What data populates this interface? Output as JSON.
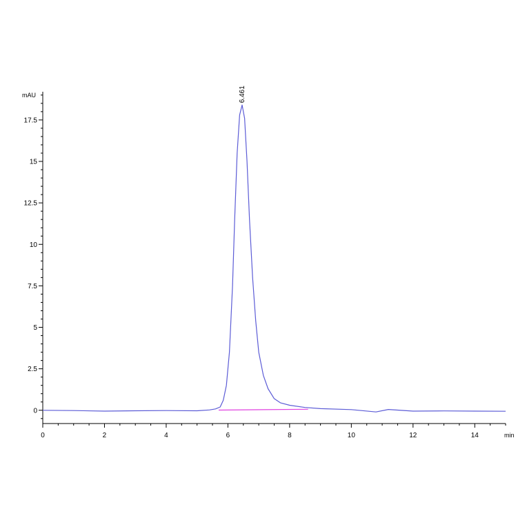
{
  "chart_data": {
    "type": "line",
    "ylabel": "mAU",
    "xlabel": "min",
    "xlim": [
      0,
      15
    ],
    "ylim": [
      -0.8,
      19.2
    ],
    "x_ticks": [
      0,
      2,
      4,
      6,
      8,
      10,
      12,
      14
    ],
    "x_tick_labels": [
      "0",
      "2",
      "4",
      "6",
      "8",
      "10",
      "12",
      "14"
    ],
    "y_ticks": [
      0,
      2.5,
      5,
      7.5,
      10,
      12.5,
      15,
      17.5
    ],
    "y_tick_labels": [
      "0",
      "2.5",
      "5",
      "7.5",
      "10",
      "12.5",
      "15",
      "17.5"
    ],
    "grid": false,
    "colors": {
      "signal": "#5b5bd6",
      "baseline": "#e040e0",
      "axis": "#000000"
    },
    "series": [
      {
        "values": [
          [
            0,
            0
          ],
          [
            1,
            -0.02
          ],
          [
            2,
            -0.05
          ],
          [
            3,
            -0.03
          ],
          [
            4,
            -0.02
          ],
          [
            5,
            -0.03
          ],
          [
            5.4,
            0.02
          ],
          [
            5.6,
            0.08
          ],
          [
            5.75,
            0.2
          ],
          [
            5.85,
            0.6
          ],
          [
            5.95,
            1.5
          ],
          [
            6.05,
            3.5
          ],
          [
            6.15,
            7.5
          ],
          [
            6.22,
            11.5
          ],
          [
            6.3,
            15.5
          ],
          [
            6.38,
            17.8
          ],
          [
            6.46,
            18.4
          ],
          [
            6.54,
            17.6
          ],
          [
            6.62,
            15.0
          ],
          [
            6.7,
            11.5
          ],
          [
            6.8,
            8.0
          ],
          [
            6.9,
            5.4
          ],
          [
            7.0,
            3.5
          ],
          [
            7.15,
            2.1
          ],
          [
            7.3,
            1.3
          ],
          [
            7.5,
            0.7
          ],
          [
            7.7,
            0.45
          ],
          [
            8.0,
            0.3
          ],
          [
            8.5,
            0.17
          ],
          [
            9.0,
            0.1
          ],
          [
            10.0,
            0.04
          ],
          [
            10.8,
            -0.1
          ],
          [
            11.2,
            0.05
          ],
          [
            12,
            -0.05
          ],
          [
            13,
            -0.04
          ],
          [
            14,
            -0.05
          ],
          [
            15,
            -0.06
          ]
        ]
      },
      {
        "values": [
          [
            5.7,
            0.01
          ],
          [
            8.6,
            0.06
          ]
        ]
      }
    ],
    "annotations": [
      {
        "text": "6.461",
        "x": 6.461,
        "y": 18.4
      }
    ]
  }
}
